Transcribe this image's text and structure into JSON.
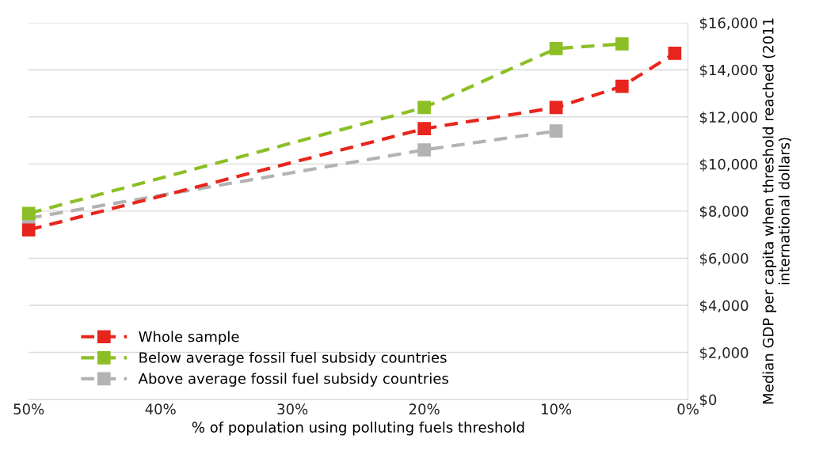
{
  "chart_data": {
    "type": "line",
    "xlabel": "% of population using polluting fuels threshold",
    "ylabel": "Median GDP per capita when threshold reached (2011 international dollars)",
    "xlim": [
      50,
      0
    ],
    "xticks": [
      {
        "value": 50,
        "label": "50%"
      },
      {
        "value": 40,
        "label": "40%"
      },
      {
        "value": 30,
        "label": "30%"
      },
      {
        "value": 20,
        "label": "20%"
      },
      {
        "value": 10,
        "label": "10%"
      },
      {
        "value": 0,
        "label": "0%"
      }
    ],
    "ylim": [
      0,
      16000
    ],
    "yticks": [
      {
        "value": 0,
        "label": "$0"
      },
      {
        "value": 2000,
        "label": "$2,000"
      },
      {
        "value": 4000,
        "label": "$4,000"
      },
      {
        "value": 6000,
        "label": "$6,000"
      },
      {
        "value": 8000,
        "label": "$8,000"
      },
      {
        "value": 10000,
        "label": "$10,000"
      },
      {
        "value": 12000,
        "label": "$12,000"
      },
      {
        "value": 14000,
        "label": "$14,000"
      },
      {
        "value": 16000,
        "label": "$16,000"
      }
    ],
    "grid": "y",
    "legend": "bottom left",
    "marker": "square",
    "line_style": "dashed",
    "series": [
      {
        "name": "Whole sample",
        "color": "#e8251c",
        "x": [
          50,
          20,
          10,
          5,
          1
        ],
        "values": [
          7200,
          11500,
          12400,
          13300,
          14700
        ]
      },
      {
        "name": "Below average fossil fuel subsidy countries",
        "color": "#8cbf26",
        "x": [
          50,
          20,
          10,
          5
        ],
        "values": [
          7900,
          12400,
          14900,
          15100
        ]
      },
      {
        "name": "Above average fossil fuel subsidy countries",
        "color": "#b3b3b3",
        "x": [
          50,
          20,
          10
        ],
        "values": [
          7700,
          10600,
          11400
        ]
      }
    ]
  }
}
